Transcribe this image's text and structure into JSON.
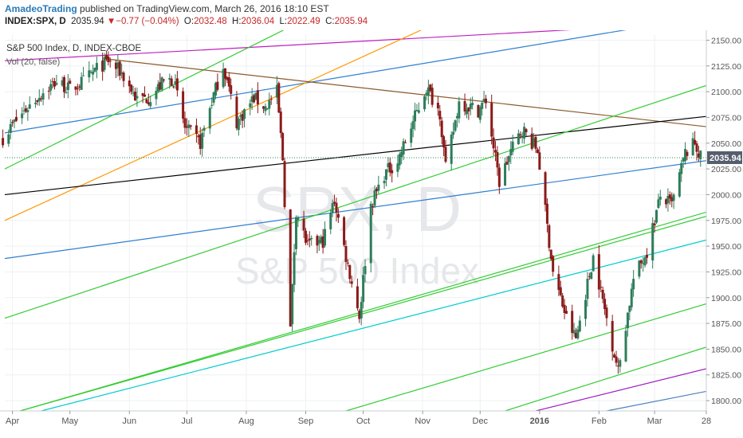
{
  "header": {
    "author": "AmadeoTrading",
    "published_text": "published on TradingView.com, March 26, 2016 18:10 EST",
    "symbol": "INDEX:SPX, D",
    "last": "2035.94",
    "change_arrow": "▼",
    "change": "−0.77 (−0.04%)",
    "o_label": "O:",
    "o_value": "2032.48",
    "h_label": "H:",
    "h_value": "2036.04",
    "l_label": "L:",
    "l_value": "2022.49",
    "c_label": "C:",
    "c_value": "2035.94"
  },
  "legend": {
    "title": "S&P 500 Index, D, INDEX-CBOE",
    "volume": "Vol (20, false)"
  },
  "watermark": {
    "symbol": "SPX, D",
    "name": "S&P 500 Index"
  },
  "colors": {
    "up": "#2e7d5b",
    "down": "#8b1a1a",
    "last_price_label": "#555e6c",
    "grid": "#eef0f3",
    "axis_text": "#555555"
  },
  "chart_data": {
    "type": "candlestick",
    "title": "S&P 500 Index, D, INDEX-CBOE",
    "x_range": [
      "2015-03-28",
      "2016-03-28"
    ],
    "ylim": [
      1790,
      2155
    ],
    "y_ticks": [
      1800,
      1825,
      1850,
      1875,
      1900,
      1925,
      1950,
      1975,
      2000,
      2025,
      2050,
      2075,
      2100,
      2125,
      2150
    ],
    "y_tick_labels": [
      "1800.00",
      "1825.00",
      "1850.00",
      "1875.00",
      "1900.00",
      "1925.00",
      "1950.00",
      "1975.00",
      "2000.00",
      "2025.00",
      "2050.00",
      "2075.00",
      "2100.00",
      "2125.00",
      "2150.00"
    ],
    "x_ticks": [
      {
        "date": "2015-04-01",
        "label": "Apr"
      },
      {
        "date": "2015-05-01",
        "label": "May"
      },
      {
        "date": "2015-06-01",
        "label": "Jun"
      },
      {
        "date": "2015-07-01",
        "label": "Jul"
      },
      {
        "date": "2015-08-01",
        "label": "Aug"
      },
      {
        "date": "2015-09-01",
        "label": "Sep"
      },
      {
        "date": "2015-10-01",
        "label": "Oct"
      },
      {
        "date": "2015-11-01",
        "label": "Nov"
      },
      {
        "date": "2015-12-01",
        "label": "Dec"
      },
      {
        "date": "2016-01-01",
        "label": "2016"
      },
      {
        "date": "2016-02-01",
        "label": "Feb"
      },
      {
        "date": "2016-03-01",
        "label": "Mar"
      },
      {
        "date": "2016-03-28",
        "label": "28"
      }
    ],
    "last_price": 2035.94,
    "last_price_label": "2035.94",
    "price_path": [
      [
        "2015-03-27",
        2055
      ],
      [
        "2015-04-02",
        2070
      ],
      [
        "2015-04-09",
        2085
      ],
      [
        "2015-04-16",
        2098
      ],
      [
        "2015-04-24",
        2110
      ],
      [
        "2015-05-01",
        2102
      ],
      [
        "2015-05-08",
        2110
      ],
      [
        "2015-05-15",
        2122
      ],
      [
        "2015-05-21",
        2130
      ],
      [
        "2015-05-28",
        2118
      ],
      [
        "2015-06-05",
        2092
      ],
      [
        "2015-06-12",
        2095
      ],
      [
        "2015-06-19",
        2110
      ],
      [
        "2015-06-24",
        2112
      ],
      [
        "2015-06-30",
        2065
      ],
      [
        "2015-07-08",
        2050
      ],
      [
        "2015-07-13",
        2085
      ],
      [
        "2015-07-20",
        2126
      ],
      [
        "2015-07-27",
        2070
      ],
      [
        "2015-08-05",
        2094
      ],
      [
        "2015-08-11",
        2085
      ],
      [
        "2015-08-17",
        2100
      ],
      [
        "2015-08-20",
        2035
      ],
      [
        "2015-08-24",
        1870
      ],
      [
        "2015-08-27",
        1985
      ],
      [
        "2015-09-02",
        1950
      ],
      [
        "2015-09-10",
        1955
      ],
      [
        "2015-09-16",
        1995
      ],
      [
        "2015-09-22",
        1940
      ],
      [
        "2015-09-29",
        1882
      ],
      [
        "2015-10-05",
        1990
      ],
      [
        "2015-10-12",
        2020
      ],
      [
        "2015-10-19",
        2033
      ],
      [
        "2015-10-26",
        2066
      ],
      [
        "2015-11-03",
        2104
      ],
      [
        "2015-11-10",
        2080
      ],
      [
        "2015-11-13",
        2025
      ],
      [
        "2015-11-20",
        2090
      ],
      [
        "2015-11-30",
        2082
      ],
      [
        "2015-12-04",
        2092
      ],
      [
        "2015-12-11",
        2012
      ],
      [
        "2015-12-17",
        2042
      ],
      [
        "2015-12-23",
        2064
      ],
      [
        "2015-12-31",
        2043
      ],
      [
        "2016-01-08",
        1925
      ],
      [
        "2016-01-15",
        1880
      ],
      [
        "2016-01-20",
        1860
      ],
      [
        "2016-01-29",
        1940
      ],
      [
        "2016-02-05",
        1880
      ],
      [
        "2016-02-11",
        1829
      ],
      [
        "2016-02-19",
        1918
      ],
      [
        "2016-02-26",
        1945
      ],
      [
        "2016-03-04",
        1998
      ],
      [
        "2016-03-10",
        1990
      ],
      [
        "2016-03-17",
        2040
      ],
      [
        "2016-03-22",
        2050
      ],
      [
        "2016-03-25",
        2035.94
      ]
    ],
    "trendlines": [
      {
        "color": "#c020c0",
        "p1": [
          "2015-03-28",
          2130
        ],
        "p2": [
          "2015-10-30",
          2152
        ]
      },
      {
        "color": "#2f7fd0",
        "p1": [
          "2015-03-28",
          2060
        ],
        "p2": [
          "2016-01-20",
          2152
        ]
      },
      {
        "color": "#33cc33",
        "p1": [
          "2015-03-28",
          2025
        ],
        "p2": [
          "2015-08-12",
          2152
        ]
      },
      {
        "color": "#ff9900",
        "p1": [
          "2015-03-28",
          1975
        ],
        "p2": [
          "2015-10-22",
          2152
        ]
      },
      {
        "color": "#8b5a2b",
        "p1": [
          "2015-05-19",
          2132
        ],
        "p2": [
          "2016-03-28",
          2066
        ]
      },
      {
        "color": "#000000",
        "p1": [
          "2015-03-28",
          2000
        ],
        "p2": [
          "2016-03-28",
          2076
        ]
      },
      {
        "color": "#2f7fd0",
        "p1": [
          "2015-03-28",
          1938
        ],
        "p2": [
          "2016-03-28",
          2033
        ]
      },
      {
        "color": "#33cc33",
        "p1": [
          "2015-03-28",
          1880
        ],
        "p2": [
          "2016-03-28",
          2106
        ]
      },
      {
        "color": "#33cc33",
        "p1": [
          "2015-04-05",
          1790
        ],
        "p2": [
          "2016-03-28",
          1983
        ]
      },
      {
        "color": "#33cc33",
        "p1": [
          "2015-04-05",
          1790
        ],
        "p2": [
          "2016-03-28",
          1979
        ]
      },
      {
        "color": "#00cccc",
        "p1": [
          "2015-04-16",
          1790
        ],
        "p2": [
          "2016-03-28",
          1956
        ]
      },
      {
        "color": "#33cc33",
        "p1": [
          "2015-09-22",
          1790
        ],
        "p2": [
          "2016-03-28",
          1894
        ]
      },
      {
        "color": "#33cc33",
        "p1": [
          "2015-12-14",
          1790
        ],
        "p2": [
          "2016-03-28",
          1852
        ]
      },
      {
        "color": "#a020c0",
        "p1": [
          "2015-12-30",
          1790
        ],
        "p2": [
          "2016-03-28",
          1831
        ]
      },
      {
        "color": "#4a7fc0",
        "p1": [
          "2016-02-05",
          1790
        ],
        "p2": [
          "2016-03-28",
          1809
        ]
      }
    ]
  }
}
